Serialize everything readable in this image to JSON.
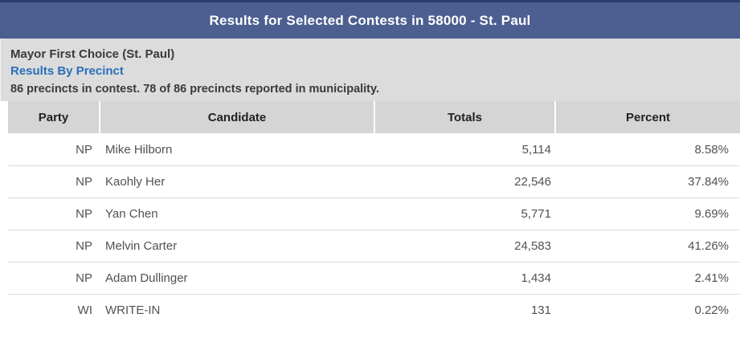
{
  "banner": {
    "title": "Results for Selected Contests in 58000 - St. Paul"
  },
  "contest": {
    "title": "Mayor First Choice (St. Paul)",
    "link_label": "Results By Precinct",
    "status": "86 precincts in contest. 78 of 86 precincts reported in municipality."
  },
  "table": {
    "columns": {
      "party": "Party",
      "candidate": "Candidate",
      "totals": "Totals",
      "percent": "Percent"
    },
    "rows": [
      {
        "party": "NP",
        "candidate": "Mike Hilborn",
        "totals": "5,114",
        "percent": "8.58%"
      },
      {
        "party": "NP",
        "candidate": "Kaohly Her",
        "totals": "22,546",
        "percent": "37.84%"
      },
      {
        "party": "NP",
        "candidate": "Yan Chen",
        "totals": "5,771",
        "percent": "9.69%"
      },
      {
        "party": "NP",
        "candidate": "Melvin Carter",
        "totals": "24,583",
        "percent": "41.26%"
      },
      {
        "party": "NP",
        "candidate": "Adam Dullinger",
        "totals": "1,434",
        "percent": "2.41%"
      },
      {
        "party": "WI",
        "candidate": "WRITE-IN",
        "totals": "131",
        "percent": "0.22%"
      }
    ]
  },
  "colors": {
    "banner_background": "#4d5f91",
    "banner_top_border": "#2c3c6b",
    "banner_text": "#ffffff",
    "info_band_background": "#dcdcdc",
    "table_header_background": "#d5d5d5",
    "link_text": "#2a6ebb",
    "body_text": "#3a3a3a",
    "row_text": "#515151"
  }
}
